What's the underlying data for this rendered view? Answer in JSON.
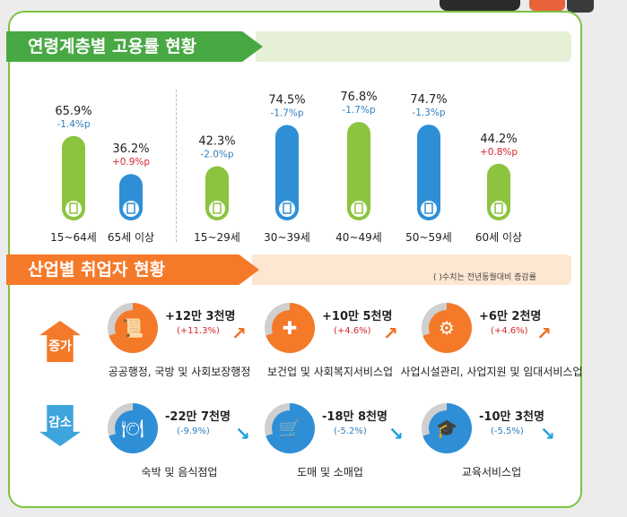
{
  "section1_title": "연령계층별 고용률 현황",
  "section2_title": "산업별 취업자 현황",
  "note": "( )수치는 전년동월대비 증감률",
  "chart_data": {
    "type": "bar",
    "title": "연령계층별 고용률 현황",
    "categories": [
      "15~64세",
      "65세 이상",
      "15~29세",
      "30~39세",
      "40~49세",
      "50~59세",
      "60세 이상"
    ],
    "values": [
      65.9,
      36.2,
      42.3,
      74.5,
      76.8,
      74.7,
      44.2
    ],
    "labels": [
      "65.9%",
      "36.2%",
      "42.3%",
      "74.5%",
      "76.8%",
      "74.7%",
      "44.2%"
    ],
    "changes": [
      "-1.4%p",
      "+0.9%p",
      "-2.0%p",
      "-1.7%p",
      "-1.7%p",
      "-1.3%p",
      "+0.8%p"
    ],
    "colors": [
      "#8cc33f",
      "#2e8fd6",
      "#8cc33f",
      "#2e8fd6",
      "#8cc33f",
      "#2e8fd6",
      "#8cc33f"
    ],
    "ylim": [
      0,
      80
    ],
    "xlabel": "",
    "ylabel": ""
  },
  "increase": {
    "badge": "증가",
    "items": [
      {
        "value": "+12만 3천명",
        "pct": "(+11.3%)",
        "label": "공공행정, 국방 및 사회보장행정",
        "icon": "scroll-icon",
        "color": "#f47a2a"
      },
      {
        "value": "+10만 5천명",
        "pct": "(+4.6%)",
        "label": "보건업 및 사회복지서비스업",
        "icon": "medical-kit-icon",
        "color": "#f47a2a"
      },
      {
        "value": "+6만 2천명",
        "pct": "(+4.6%)",
        "label": "사업시설관리, 사업지원 및 임대서비스업",
        "icon": "people-service-icon",
        "color": "#f47a2a"
      }
    ]
  },
  "decrease": {
    "badge": "감소",
    "items": [
      {
        "value": "-22만 7천명",
        "pct": "(-9.9%)",
        "label": "숙박 및 음식점업",
        "icon": "dining-icon",
        "color": "#2e8fd6"
      },
      {
        "value": "-18만 8천명",
        "pct": "(-5.2%)",
        "label": "도매 및 소매업",
        "icon": "basket-icon",
        "color": "#2e8fd6"
      },
      {
        "value": "-10만 3천명",
        "pct": "(-5.5%)",
        "label": "교육서비스업",
        "icon": "graduation-cap-icon",
        "color": "#2e8fd6"
      }
    ]
  }
}
